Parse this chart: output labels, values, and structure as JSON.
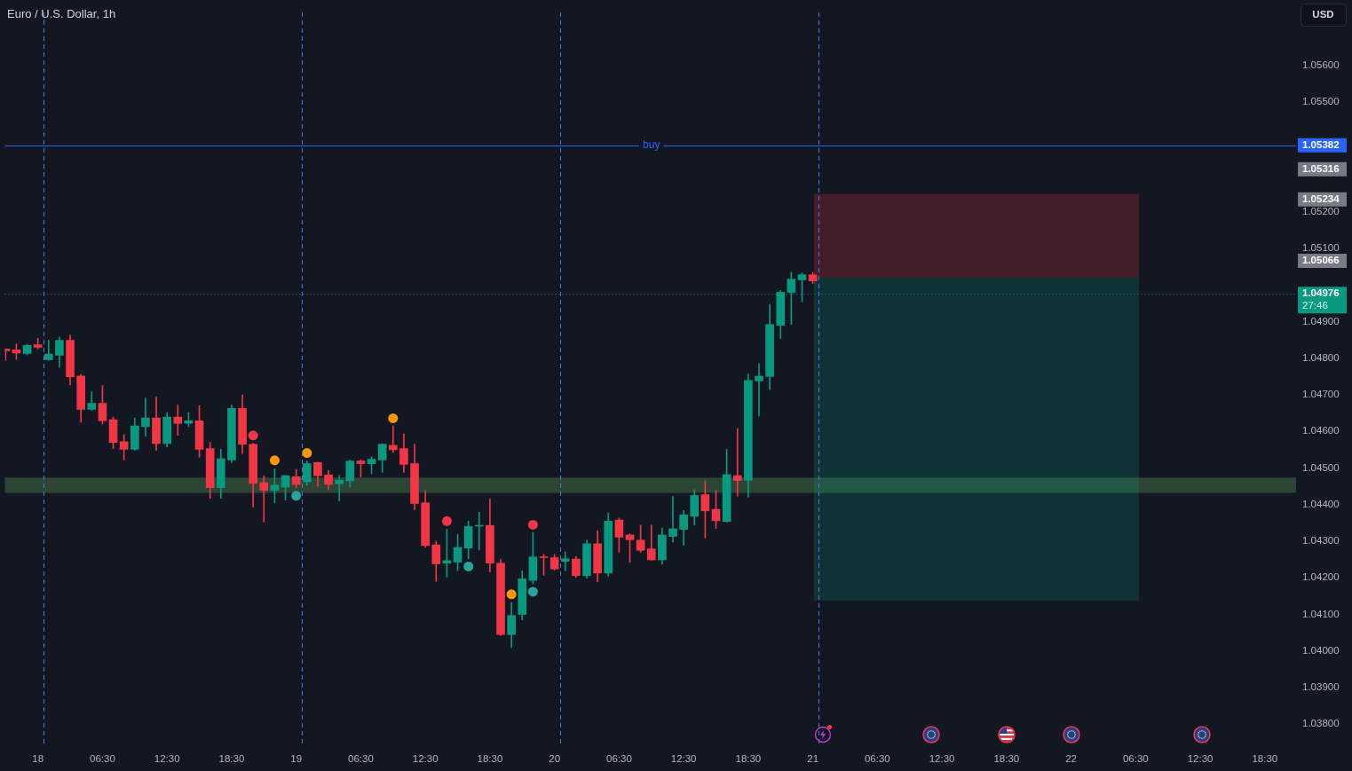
{
  "chart_data": {
    "type": "candlestick",
    "title": "Euro / U.S. Dollar, 1h",
    "ylabel": "USD",
    "x": [
      "--02-17T21:30",
      "--02-17T22:30",
      "--02-17T23:30",
      "--02-18T00:30",
      "--02-18T01:30",
      "--02-18T02:30",
      "--02-18T03:30",
      "--02-18T04:30",
      "--02-18T05:30",
      "--02-18T06:30",
      "--02-18T07:30",
      "--02-18T08:30",
      "--02-18T09:30",
      "--02-18T10:30",
      "--02-18T11:30",
      "--02-18T12:30",
      "--02-18T13:30",
      "--02-18T14:30",
      "--02-18T15:30",
      "--02-18T16:30",
      "--02-18T17:30",
      "--02-18T18:30",
      "--02-18T19:30",
      "--02-18T20:30",
      "--02-18T21:30",
      "--02-18T22:30",
      "--02-18T23:30",
      "--02-19T00:30",
      "--02-19T01:30",
      "--02-19T02:30",
      "--02-19T03:30",
      "--02-19T04:30",
      "--02-19T05:30",
      "--02-19T06:30",
      "--02-19T07:30",
      "--02-19T08:30",
      "--02-19T09:30",
      "--02-19T10:30",
      "--02-19T11:30",
      "--02-19T12:30",
      "--02-19T13:30",
      "--02-19T14:30",
      "--02-19T15:30",
      "--02-19T16:30",
      "--02-19T17:30",
      "--02-19T18:30",
      "--02-19T19:30",
      "--02-19T20:30",
      "--02-19T21:30",
      "--02-19T22:30",
      "--02-19T23:30",
      "--02-20T00:30",
      "--02-20T01:30",
      "--02-20T02:30",
      "--02-20T03:30",
      "--02-20T04:30",
      "--02-20T05:30",
      "--02-20T06:30",
      "--02-20T07:30",
      "--02-20T08:30",
      "--02-20T09:30",
      "--02-20T10:30",
      "--02-20T11:30",
      "--02-20T12:30",
      "--02-20T13:30",
      "--02-20T14:30",
      "--02-20T15:30",
      "--02-20T16:30",
      "--02-20T17:30",
      "--02-20T18:30",
      "--02-20T19:30",
      "--02-20T20:30",
      "--02-20T21:30",
      "--02-20T22:30",
      "--02-20T23:30",
      "--02-21T00:30"
    ],
    "ohlc": [
      [
        1.04825,
        1.04826,
        1.04794,
        1.0482
      ],
      [
        1.04823,
        1.04839,
        1.04797,
        1.04814
      ],
      [
        1.04813,
        1.04838,
        1.04809,
        1.04835
      ],
      [
        1.04837,
        1.04854,
        1.04825,
        1.0483
      ],
      [
        1.04796,
        1.04849,
        1.04794,
        1.04811
      ],
      [
        1.04808,
        1.04858,
        1.04775,
        1.04849
      ],
      [
        1.04849,
        1.04863,
        1.04727,
        1.04749
      ],
      [
        1.04751,
        1.04756,
        1.04625,
        1.0466
      ],
      [
        1.0466,
        1.04708,
        1.04658,
        1.04677
      ],
      [
        1.04677,
        1.04725,
        1.0462,
        1.04629
      ],
      [
        1.04632,
        1.04639,
        1.04553,
        1.0457
      ],
      [
        1.04572,
        1.04591,
        1.04522,
        1.04551
      ],
      [
        1.04551,
        1.04637,
        1.04548,
        1.04615
      ],
      [
        1.04613,
        1.04691,
        1.04587,
        1.04637
      ],
      [
        1.04637,
        1.04694,
        1.04548,
        1.04567
      ],
      [
        1.04567,
        1.04651,
        1.04558,
        1.04639
      ],
      [
        1.04639,
        1.04672,
        1.04589,
        1.04622
      ],
      [
        1.04622,
        1.04651,
        1.04613,
        1.04629
      ],
      [
        1.04629,
        1.0467,
        1.04529,
        1.04551
      ],
      [
        1.04553,
        1.0457,
        1.04417,
        1.04446
      ],
      [
        1.04446,
        1.04551,
        1.04417,
        1.04525
      ],
      [
        1.04522,
        1.04672,
        1.04515,
        1.04663
      ],
      [
        1.04663,
        1.04699,
        1.04539,
        1.04565
      ],
      [
        1.04565,
        1.04567,
        1.04393,
        1.04458
      ],
      [
        1.0446,
        1.04479,
        1.04353,
        1.04439
      ],
      [
        1.04439,
        1.04498,
        1.04405,
        1.04453
      ],
      [
        1.04448,
        1.0448,
        1.04412,
        1.04479
      ],
      [
        1.04476,
        1.04496,
        1.04446,
        1.04455
      ],
      [
        1.04462,
        1.04519,
        1.04453,
        1.04512
      ],
      [
        1.04515,
        1.04516,
        1.0445,
        1.04479
      ],
      [
        1.04481,
        1.04493,
        1.04441,
        1.04455
      ],
      [
        1.04457,
        1.04479,
        1.0441,
        1.04467
      ],
      [
        1.04465,
        1.04522,
        1.04448,
        1.04519
      ],
      [
        1.04519,
        1.04522,
        1.04476,
        1.04512
      ],
      [
        1.04512,
        1.04531,
        1.04484,
        1.04524
      ],
      [
        1.04522,
        1.04566,
        1.04488,
        1.04565
      ],
      [
        1.04562,
        1.04615,
        1.04543,
        1.0455
      ],
      [
        1.04553,
        1.04593,
        1.04488,
        1.0451
      ],
      [
        1.04512,
        1.04565,
        1.04386,
        1.04403
      ],
      [
        1.04405,
        1.04438,
        1.04283,
        1.04288
      ],
      [
        1.0429,
        1.043,
        1.0419,
        1.04238
      ],
      [
        1.0424,
        1.04333,
        1.04202,
        1.04247
      ],
      [
        1.04243,
        1.04319,
        1.04219,
        1.04283
      ],
      [
        1.04281,
        1.04355,
        1.04252,
        1.0434
      ],
      [
        1.04341,
        1.04379,
        1.04276,
        1.04342
      ],
      [
        1.04343,
        1.04415,
        1.04216,
        1.0424
      ],
      [
        1.0424,
        1.0425,
        1.04042,
        1.04045
      ],
      [
        1.04045,
        1.04133,
        1.04009,
        1.04097
      ],
      [
        1.041,
        1.04219,
        1.04085,
        1.04197
      ],
      [
        1.04193,
        1.04324,
        1.04183,
        1.04257
      ],
      [
        1.04257,
        1.04264,
        1.04207,
        1.04255
      ],
      [
        1.04255,
        1.04264,
        1.04221,
        1.04224
      ],
      [
        1.04245,
        1.04271,
        1.04219,
        1.04252
      ],
      [
        1.04251,
        1.04258,
        1.04201,
        1.04206
      ],
      [
        1.04206,
        1.04303,
        1.04199,
        1.04293
      ],
      [
        1.04293,
        1.04329,
        1.04189,
        1.04213
      ],
      [
        1.04213,
        1.04377,
        1.04204,
        1.04355
      ],
      [
        1.04358,
        1.04363,
        1.0427,
        1.04311
      ],
      [
        1.04317,
        1.0432,
        1.04242,
        1.04304
      ],
      [
        1.04303,
        1.04344,
        1.0427,
        1.04275
      ],
      [
        1.04279,
        1.04344,
        1.04247,
        1.04249
      ],
      [
        1.04249,
        1.04336,
        1.04237,
        1.04317
      ],
      [
        1.04313,
        1.04422,
        1.04297,
        1.04334
      ],
      [
        1.04332,
        1.04384,
        1.04289,
        1.04372
      ],
      [
        1.04368,
        1.04441,
        1.04344,
        1.04425
      ],
      [
        1.04427,
        1.04465,
        1.04309,
        1.04383
      ],
      [
        1.04387,
        1.04439,
        1.04335,
        1.04356
      ],
      [
        1.04354,
        1.04551,
        1.04352,
        1.04482
      ],
      [
        1.04479,
        1.04608,
        1.04423,
        1.04466
      ],
      [
        1.04466,
        1.04756,
        1.04421,
        1.04739
      ],
      [
        1.04738,
        1.04785,
        1.04642,
        1.04751
      ],
      [
        1.0475,
        1.04947,
        1.04714,
        1.04892
      ],
      [
        1.0489,
        1.04985,
        1.04854,
        1.0498
      ],
      [
        1.0498,
        1.05035,
        1.04892,
        1.05016
      ],
      [
        1.05014,
        1.05033,
        1.04954,
        1.05028
      ],
      [
        1.05028,
        1.05035,
        1.05004,
        1.05011
      ]
    ],
    "colors": [
      "#f23645",
      "#f23645",
      "#089981",
      "#f23645",
      "#089981",
      "#089981",
      "#f23645",
      "#f23645",
      "#089981",
      "#f23645",
      "#f23645",
      "#f23645",
      "#089981",
      "#089981",
      "#f23645",
      "#089981",
      "#f23645",
      "#089981",
      "#f23645",
      "#f23645",
      "#089981",
      "#089981",
      "#f23645",
      "#f23645",
      "#f23645",
      "#089981",
      "#089981",
      "#f23645",
      "#089981",
      "#f23645",
      "#f23645",
      "#089981",
      "#089981",
      "#f23645",
      "#089981",
      "#089981",
      "#f23645",
      "#f23645",
      "#f23645",
      "#f23645",
      "#f23645",
      "#089981",
      "#089981",
      "#089981",
      "#089981",
      "#f23645",
      "#f23645",
      "#089981",
      "#089981",
      "#089981",
      "#f23645",
      "#f23645",
      "#089981",
      "#f23645",
      "#089981",
      "#f23645",
      "#089981",
      "#f23645",
      "#f23645",
      "#f23645",
      "#f23645",
      "#089981",
      "#089981",
      "#089981",
      "#089981",
      "#f23645",
      "#f23645",
      "#089981",
      "#f23645",
      "#089981",
      "#089981",
      "#089981",
      "#089981",
      "#089981",
      "#089981",
      "#f23645"
    ],
    "series": [
      {
        "type": "scatter",
        "color": "#f23645",
        "x": [
          "--02-18T20:30",
          "--02-19T14:30",
          "--02-19T22:30"
        ],
        "values": [
          1.04589,
          1.04355,
          1.04345
        ]
      },
      {
        "type": "scatter",
        "color": "#ff9800",
        "x": [
          "--02-18T22:30",
          "--02-19T01:30",
          "--02-19T09:30",
          "--02-19T20:30"
        ],
        "values": [
          1.04521,
          1.04541,
          1.04636,
          1.04155
        ]
      },
      {
        "type": "scatter",
        "color": "#26a69a",
        "x": [
          "--02-19T00:30",
          "--02-19T16:30",
          "--02-19T22:30"
        ],
        "values": [
          1.04424,
          1.04231,
          1.04162
        ]
      },
      {
        "type": "area",
        "color": "#f23645",
        "x": [
          "--02-21T00:36",
          "--02-22T06:48"
        ],
        "values": [
          null,
          null
        ],
        "lower": [
          1.0502,
          1.0502
        ],
        "upper": [
          1.05249,
          1.05249
        ]
      },
      {
        "type": "area",
        "color": "#089981",
        "x": [
          "--02-21T00:36",
          "--02-22T06:48"
        ],
        "values": [
          null,
          null
        ],
        "lower": [
          1.04138,
          1.04138
        ],
        "upper": [
          1.0502,
          1.0502
        ]
      }
    ],
    "marker": "circle",
    "xlim": [
      "--02-17T21:26",
      "--02-22T21:24"
    ],
    "ylim": [
      1.0374,
      1.05745
    ],
    "xticks": [
      {
        "value": "--02-18T00:30",
        "label": "18"
      },
      {
        "value": "--02-18T06:30",
        "label": "06:30"
      },
      {
        "value": "--02-18T12:30",
        "label": "12:30"
      },
      {
        "value": "--02-18T18:30",
        "label": "18:30"
      },
      {
        "value": "--02-19T00:30",
        "label": "19"
      },
      {
        "value": "--02-19T06:30",
        "label": "06:30"
      },
      {
        "value": "--02-19T12:30",
        "label": "12:30"
      },
      {
        "value": "--02-19T18:30",
        "label": "18:30"
      },
      {
        "value": "--02-20T00:30",
        "label": "20"
      },
      {
        "value": "--02-20T06:30",
        "label": "06:30"
      },
      {
        "value": "--02-20T12:30",
        "label": "12:30"
      },
      {
        "value": "--02-20T18:30",
        "label": "18:30"
      },
      {
        "value": "--02-21T00:30",
        "label": "21"
      },
      {
        "value": "--02-21T06:30",
        "label": "06:30"
      },
      {
        "value": "--02-21T12:30",
        "label": "12:30"
      },
      {
        "value": "--02-21T18:30",
        "label": "18:30"
      },
      {
        "value": "--02-22T00:30",
        "label": "22"
      },
      {
        "value": "--02-22T06:30",
        "label": "06:30"
      },
      {
        "value": "--02-22T12:30",
        "label": "12:30"
      },
      {
        "value": "--02-22T18:30",
        "label": "18:30"
      }
    ],
    "yticks": [
      {
        "value": 1.038,
        "label": "1.03800"
      },
      {
        "value": 1.039,
        "label": "1.03900"
      },
      {
        "value": 1.04,
        "label": "1.04000"
      },
      {
        "value": 1.041,
        "label": "1.04100"
      },
      {
        "value": 1.042,
        "label": "1.04200"
      },
      {
        "value": 1.043,
        "label": "1.04300"
      },
      {
        "value": 1.044,
        "label": "1.04400"
      },
      {
        "value": 1.045,
        "label": "1.04500"
      },
      {
        "value": 1.046,
        "label": "1.04600"
      },
      {
        "value": 1.047,
        "label": "1.04700"
      },
      {
        "value": 1.048,
        "label": "1.04800"
      },
      {
        "value": 1.049,
        "label": "1.04900"
      },
      1.05066,
      {
        "value": 1.051,
        "label": "1.05100"
      },
      {
        "value": 1.052,
        "label": "1.05200"
      },
      1.05234,
      1.05316,
      {
        "value": 1.055,
        "label": "1.05500"
      },
      {
        "value": 1.056,
        "label": "1.05600"
      }
    ],
    "ref_lines": [
      {
        "axis": "y",
        "value": 1.05382,
        "label": "1.05382",
        "color": "#2962ff",
        "line_style": "solid"
      },
      {
        "axis": "y",
        "value": 1.04976,
        "label": "1.04976",
        "color": "#089981",
        "line_style": "dotted"
      },
      {
        "axis": "x",
        "value": "--02-18T01:00",
        "color": "#4a7dd6",
        "line_style": "dashed"
      },
      {
        "axis": "x",
        "value": "--02-19T01:00",
        "color": "#4a7dd6",
        "line_style": "dashed"
      },
      {
        "axis": "x",
        "value": "--02-20T01:00",
        "color": "#4a7dd6",
        "line_style": "dashed"
      },
      {
        "axis": "x",
        "value": "--02-21T01:00",
        "color": "#4a7dd6",
        "line_style": "dashed"
      }
    ],
    "bands": [
      {
        "axis": "y",
        "from": 1.04432,
        "to": 1.04474,
        "color": "#2c4535"
      }
    ],
    "annotations": [
      {
        "text": "buy",
        "x": "--02-20T09:30",
        "y": 1.05382
      },
      "27:46"
    ]
  }
}
